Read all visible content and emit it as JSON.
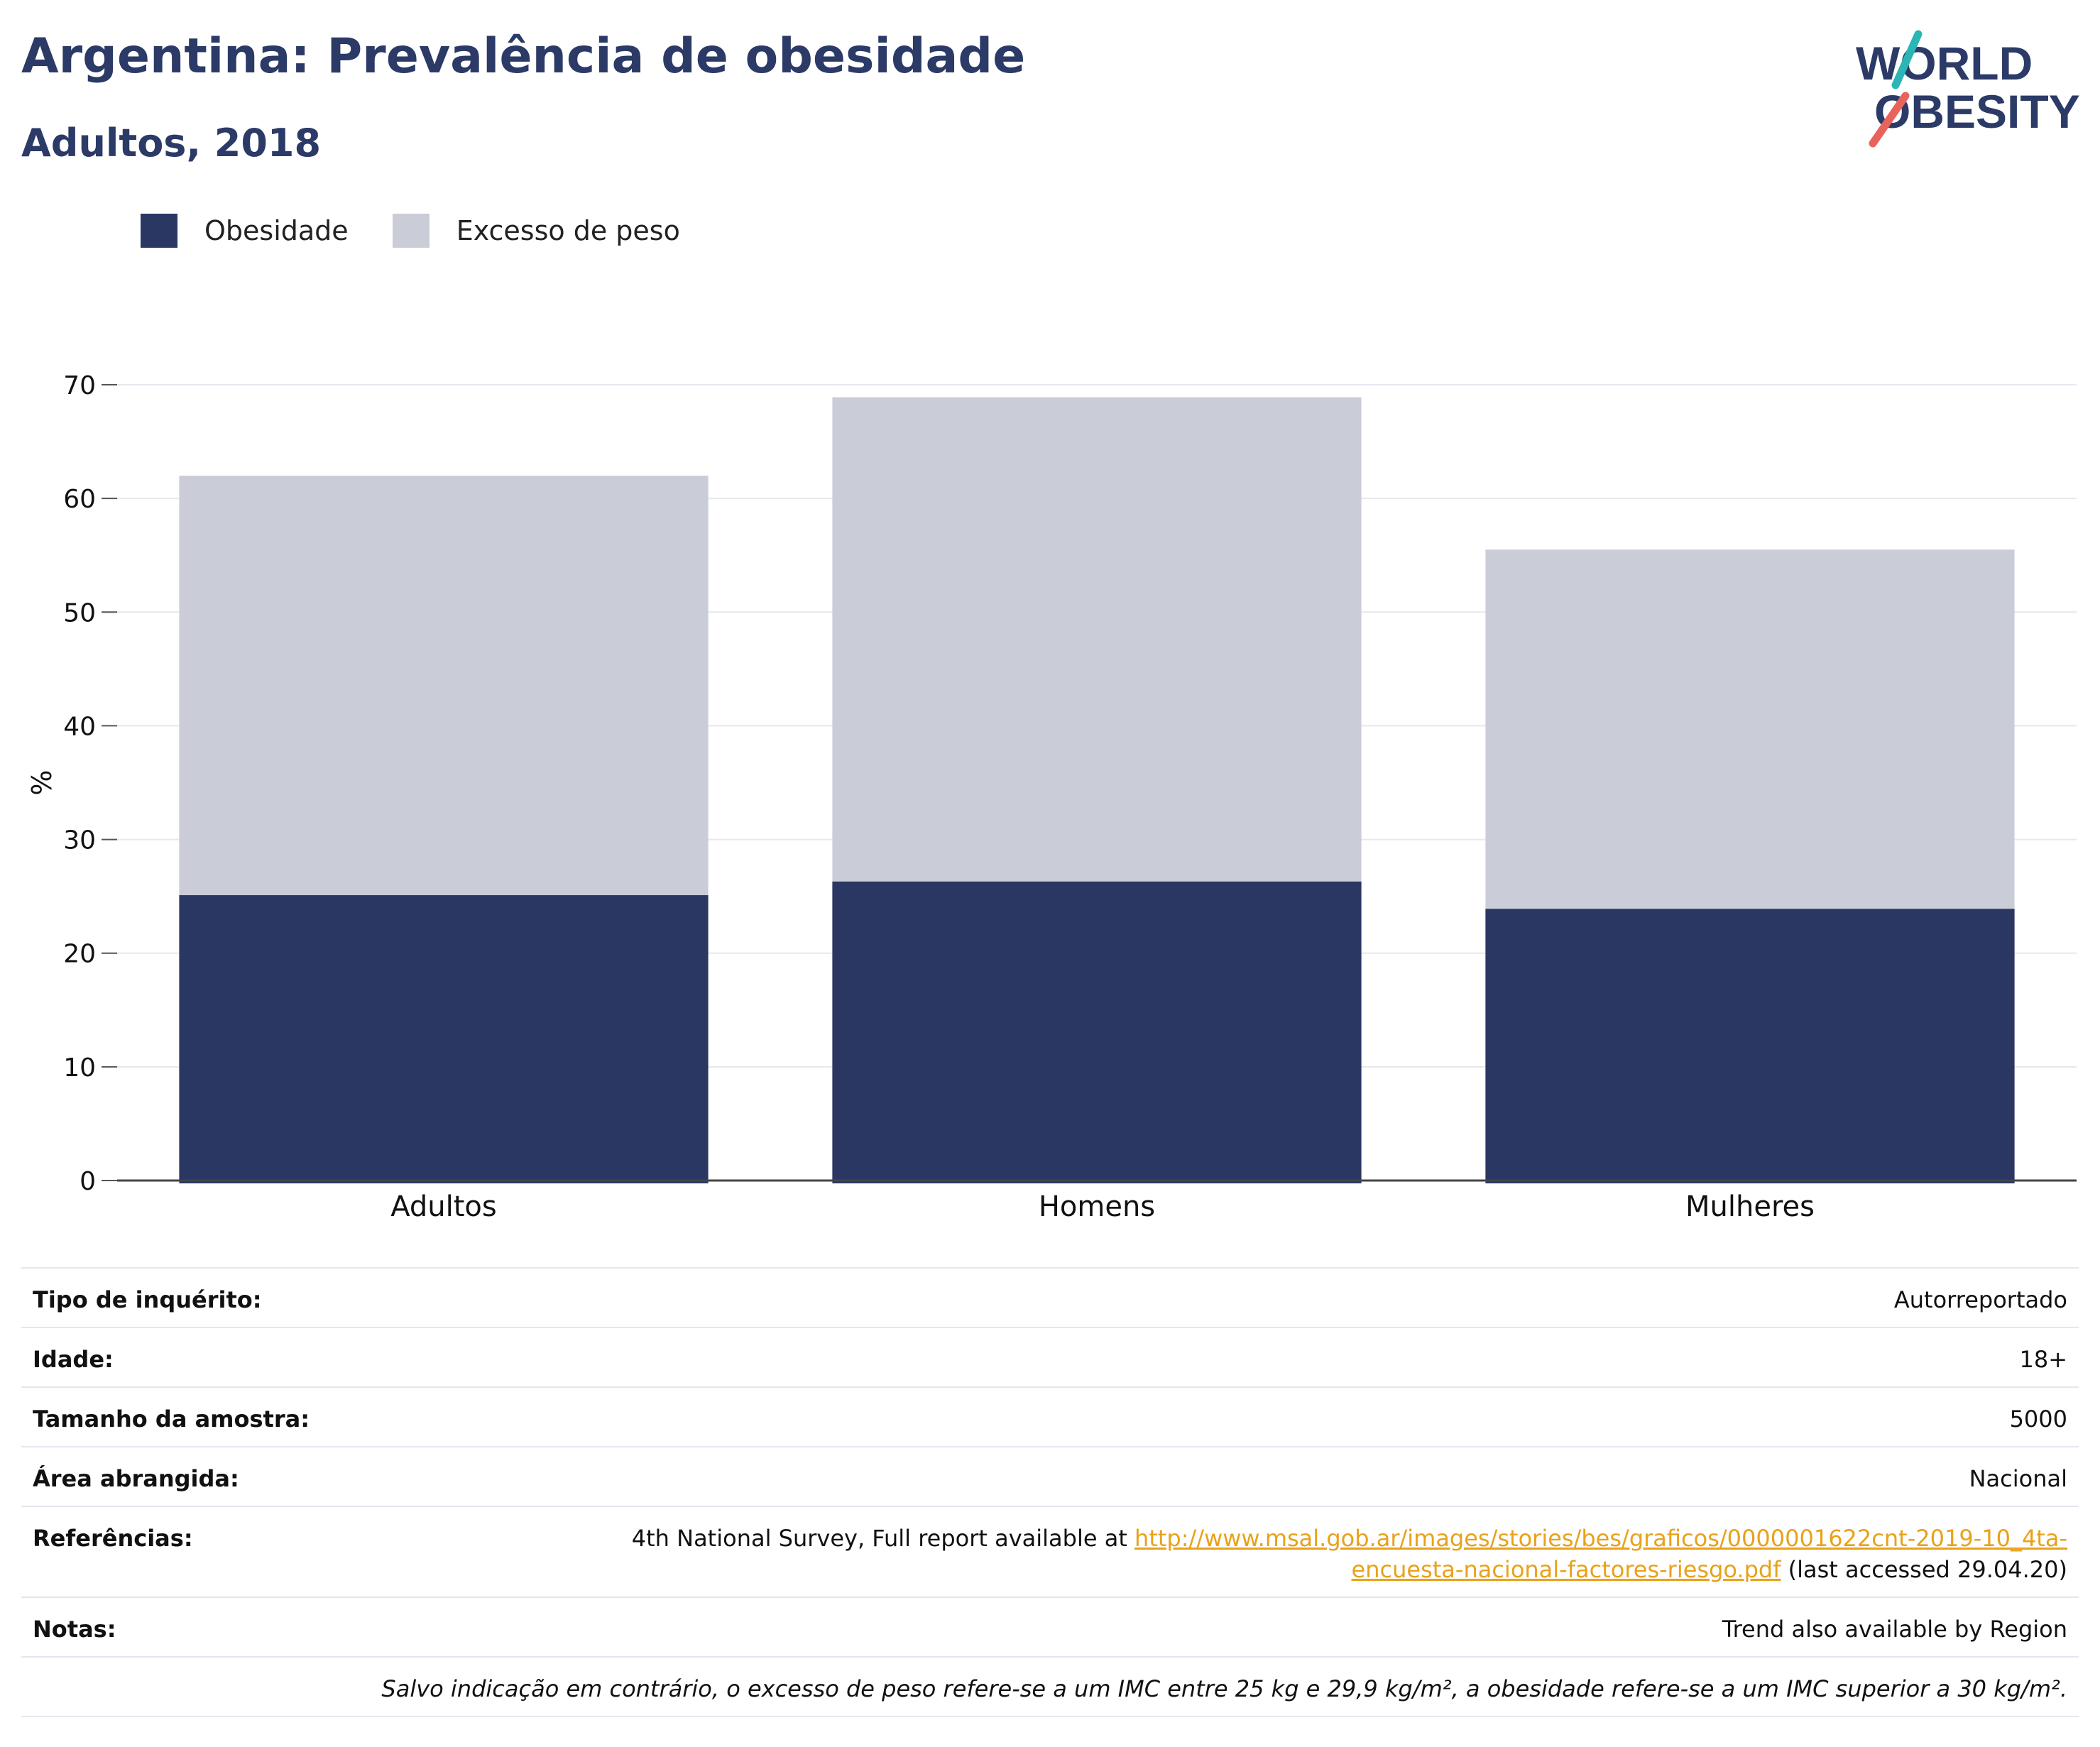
{
  "header": {
    "title": "Argentina: Prevalência de obesidade",
    "subtitle": "Adultos, 2018"
  },
  "logo": {
    "line1": "WORLD",
    "line2": "OBESITY"
  },
  "colors": {
    "obesity": "#2b3763",
    "overweight": "#cacdd8",
    "title": "#2b3a66",
    "link": "#e8a21a",
    "logo_teal": "#2bb5b5",
    "logo_coral": "#e8645a"
  },
  "chart_data": {
    "type": "bar",
    "stacked": false,
    "categories": [
      "Adultos",
      "Homens",
      "Mulheres"
    ],
    "series": [
      {
        "name": "Excesso de peso",
        "values": [
          62.0,
          68.9,
          55.5
        ]
      },
      {
        "name": "Obesidade",
        "values": [
          25.1,
          26.3,
          23.9
        ]
      }
    ],
    "ylabel": "%",
    "ylim": [
      0,
      70
    ],
    "yticks": [
      0,
      10,
      20,
      30,
      40,
      50,
      60,
      70
    ],
    "grid": true,
    "legend_position": "top-left",
    "legend": [
      "Obesidade",
      "Excesso de peso"
    ]
  },
  "info": {
    "survey_type_label": "Tipo de inquérito:",
    "survey_type": "Autorreportado",
    "age_label": "Idade:",
    "age": "18+",
    "sample_label": "Tamanho da amostra:",
    "sample": "5000",
    "area_label": "Área abrangida:",
    "area": "Nacional",
    "refs_label": "Referências:",
    "refs_prefix": "4th National Survey, Full report available at ",
    "refs_link_1": "http://www.msal.gob.ar/images/stories/bes/graficos/0000001622cnt-2019-10_4ta-",
    "refs_link_2": "encuesta-nacional-factores-riesgo.pdf",
    "refs_suffix": " (last accessed 29.04.20)",
    "notes_label": "Notas:",
    "notes": "Trend also available by Region",
    "footnote": "Salvo indicação em contrário, o excesso de peso refere-se a um IMC entre 25 kg e 29,9 kg/m², a obesidade refere-se a um IMC superior a 30 kg/m²."
  }
}
